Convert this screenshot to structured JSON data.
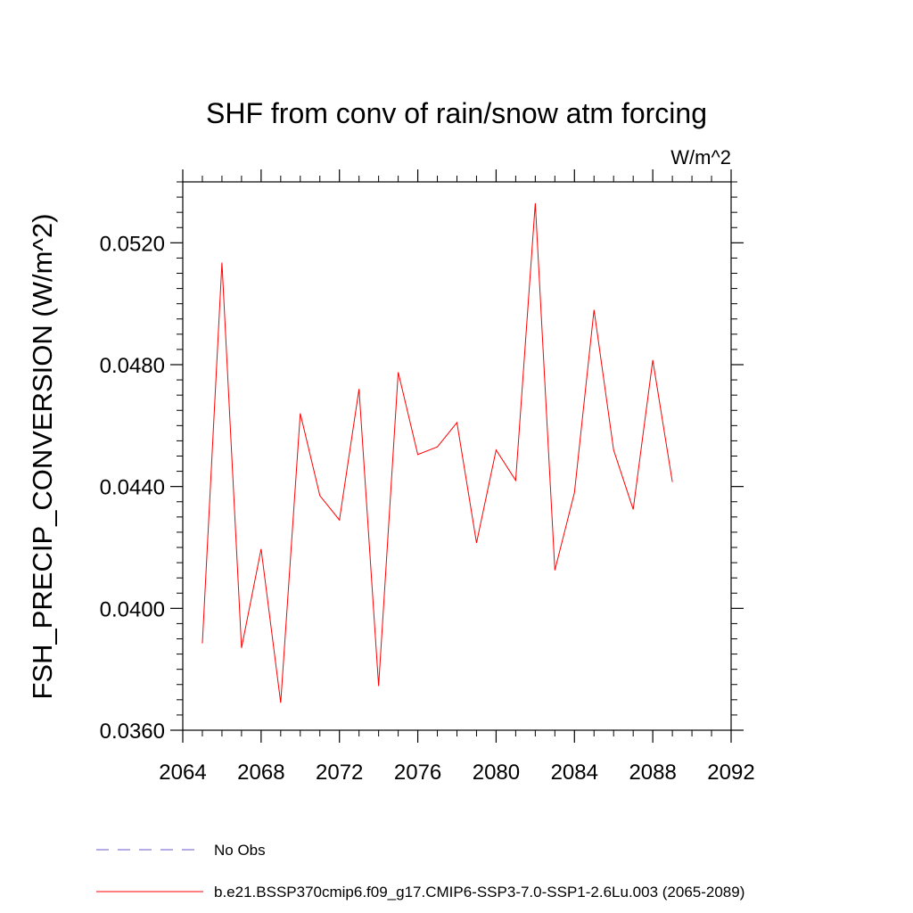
{
  "chart_data": {
    "type": "line",
    "title": "SHF from conv of rain/snow atm forcing",
    "units_label": "W/m^2",
    "ylabel": "FSH_PRECIP_CONVERSION  (W/m^2)",
    "xlabel": "",
    "xlim": [
      2064,
      2092
    ],
    "ylim": [
      0.036,
      0.054
    ],
    "x_ticks": [
      2064,
      2068,
      2072,
      2076,
      2080,
      2084,
      2088,
      2092
    ],
    "x_tick_labels": [
      "2064",
      "2068",
      "2072",
      "2076",
      "2080",
      "2084",
      "2088",
      "2092"
    ],
    "y_ticks": [
      0.036,
      0.04,
      0.044,
      0.048,
      0.052
    ],
    "y_tick_labels": [
      "0.0360",
      "0.0400",
      "0.0440",
      "0.0480",
      "0.0520"
    ],
    "grid": false,
    "legend_position": "bottom",
    "series": [
      {
        "name": "b.e21.BSSP370cmip6.f09_g17.CMIP6-SSP3-7.0-SSP1-2.6Lu.003 (2065-2089)",
        "color": "#ff0000",
        "style": "solid",
        "x": [
          2065,
          2066,
          2067,
          2068,
          2069,
          2070,
          2071,
          2072,
          2073,
          2074,
          2075,
          2076,
          2077,
          2078,
          2079,
          2080,
          2081,
          2082,
          2083,
          2084,
          2085,
          2086,
          2087,
          2088,
          2089
        ],
        "y": [
          0.03885,
          0.05135,
          0.0387,
          0.04195,
          0.0369,
          0.0464,
          0.0437,
          0.0429,
          0.0472,
          0.03745,
          0.04775,
          0.04505,
          0.0453,
          0.0461,
          0.04215,
          0.0452,
          0.0442,
          0.0533,
          0.04125,
          0.0438,
          0.0498,
          0.0452,
          0.04325,
          0.04815,
          0.04415
        ]
      },
      {
        "name": "No Obs",
        "color": "#6a5acd",
        "style": "dashed",
        "x": [],
        "y": []
      }
    ]
  }
}
